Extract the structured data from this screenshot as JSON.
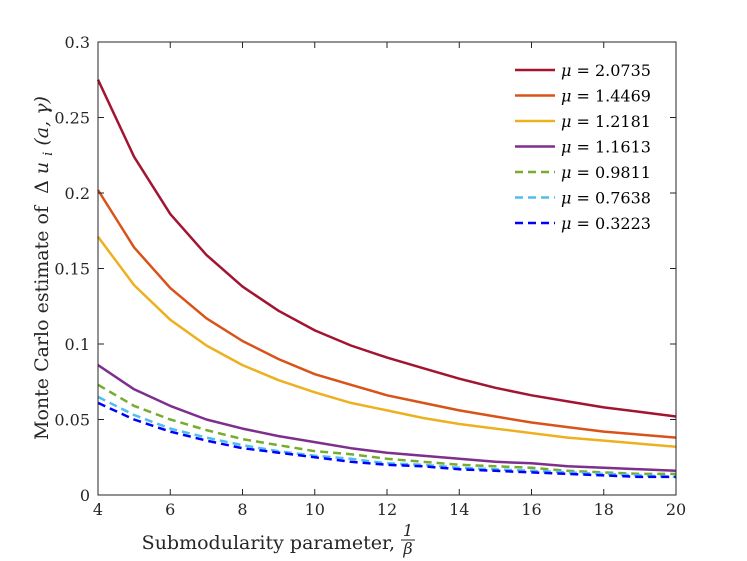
{
  "chart_data": {
    "type": "line",
    "title": "",
    "xlabel_text": "Submodularity parameter,",
    "xlabel_frac": {
      "num": "1",
      "den": "β"
    },
    "ylabel_text": "Monte Carlo estimate of",
    "ylabel_math": {
      "delta": "Δ",
      "u": "u",
      "sub": "i",
      "args": "(a, γ)"
    },
    "xlim": [
      4,
      20
    ],
    "ylim": [
      0,
      0.3
    ],
    "xticks": [
      4,
      6,
      8,
      10,
      12,
      14,
      16,
      18,
      20
    ],
    "xtick_labels": [
      "4",
      "6",
      "8",
      "10",
      "12",
      "14",
      "16",
      "18",
      "20"
    ],
    "yticks": [
      0,
      0.05,
      0.1,
      0.15,
      0.2,
      0.25,
      0.3
    ],
    "ytick_labels": [
      "0",
      "0.05",
      "0.1",
      "0.15",
      "0.2",
      "0.25",
      "0.3"
    ],
    "grid": false,
    "legend_position": "top-right",
    "x": [
      4,
      5,
      6,
      7,
      8,
      9,
      10,
      11,
      12,
      13,
      14,
      15,
      16,
      17,
      18,
      19,
      20
    ],
    "series": [
      {
        "name": "μ = 2.0735",
        "mu": "μ",
        "value": "2.0735",
        "color": "#A2142F",
        "dashed": false,
        "values": [
          0.275,
          0.224,
          0.186,
          0.159,
          0.138,
          0.122,
          0.109,
          0.099,
          0.091,
          0.084,
          0.077,
          0.071,
          0.066,
          0.062,
          0.058,
          0.055,
          0.052
        ]
      },
      {
        "name": "μ = 1.4469",
        "mu": "μ",
        "value": "1.4469",
        "color": "#D95319",
        "dashed": false,
        "values": [
          0.202,
          0.164,
          0.137,
          0.117,
          0.102,
          0.09,
          0.08,
          0.073,
          0.066,
          0.061,
          0.056,
          0.052,
          0.048,
          0.045,
          0.042,
          0.04,
          0.038
        ]
      },
      {
        "name": "μ = 1.2181",
        "mu": "μ",
        "value": "1.2181",
        "color": "#EDB120",
        "dashed": false,
        "values": [
          0.171,
          0.139,
          0.116,
          0.099,
          0.086,
          0.076,
          0.068,
          0.061,
          0.056,
          0.051,
          0.047,
          0.044,
          0.041,
          0.038,
          0.036,
          0.034,
          0.032
        ]
      },
      {
        "name": "μ = 1.1613",
        "mu": "μ",
        "value": "1.1613",
        "color": "#7E2F8E",
        "dashed": false,
        "values": [
          0.086,
          0.07,
          0.059,
          0.05,
          0.044,
          0.039,
          0.035,
          0.031,
          0.028,
          0.026,
          0.024,
          0.022,
          0.021,
          0.019,
          0.018,
          0.017,
          0.016
        ]
      },
      {
        "name": "μ = 0.9811",
        "mu": "μ",
        "value": "0.9811",
        "color": "#77AC30",
        "dashed": true,
        "values": [
          0.073,
          0.059,
          0.05,
          0.043,
          0.037,
          0.033,
          0.029,
          0.027,
          0.024,
          0.022,
          0.02,
          0.019,
          0.018,
          0.016,
          0.015,
          0.014,
          0.014
        ]
      },
      {
        "name": "μ = 0.7638",
        "mu": "μ",
        "value": "0.7638",
        "color": "#4DBEEE",
        "dashed": true,
        "values": [
          0.065,
          0.053,
          0.044,
          0.038,
          0.033,
          0.029,
          0.026,
          0.024,
          0.021,
          0.02,
          0.018,
          0.017,
          0.016,
          0.015,
          0.014,
          0.013,
          0.012
        ]
      },
      {
        "name": "μ = 0.3223",
        "mu": "μ",
        "value": "0.3223",
        "color": "#0000FF",
        "dashed": true,
        "values": [
          0.061,
          0.05,
          0.042,
          0.036,
          0.031,
          0.028,
          0.025,
          0.022,
          0.02,
          0.019,
          0.017,
          0.016,
          0.015,
          0.014,
          0.013,
          0.012,
          0.012
        ]
      }
    ]
  }
}
